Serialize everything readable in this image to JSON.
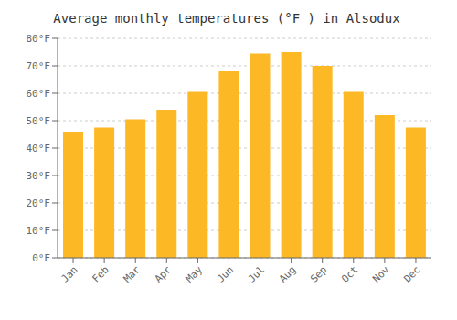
{
  "chart_data": {
    "type": "bar",
    "title": "Average monthly temperatures (°F ) in Alsodux",
    "categories": [
      "Jan",
      "Feb",
      "Mar",
      "Apr",
      "May",
      "Jun",
      "Jul",
      "Aug",
      "Sep",
      "Oct",
      "Nov",
      "Dec"
    ],
    "values": [
      46,
      47.5,
      50.5,
      54,
      60.5,
      68,
      74.5,
      75,
      70,
      60.5,
      52,
      47.5
    ],
    "color": "#FDB825",
    "ylim": [
      0,
      80
    ],
    "yticks": [
      {
        "value": 0,
        "label": "0°F"
      },
      {
        "value": 10,
        "label": "10°F"
      },
      {
        "value": 20,
        "label": "20°F"
      },
      {
        "value": 30,
        "label": "30°F"
      },
      {
        "value": 40,
        "label": "40°F"
      },
      {
        "value": 50,
        "label": "50°F"
      },
      {
        "value": 60,
        "label": "60°F"
      },
      {
        "value": 70,
        "label": "70°F"
      },
      {
        "value": 80,
        "label": "80°F"
      }
    ],
    "grid": true
  }
}
